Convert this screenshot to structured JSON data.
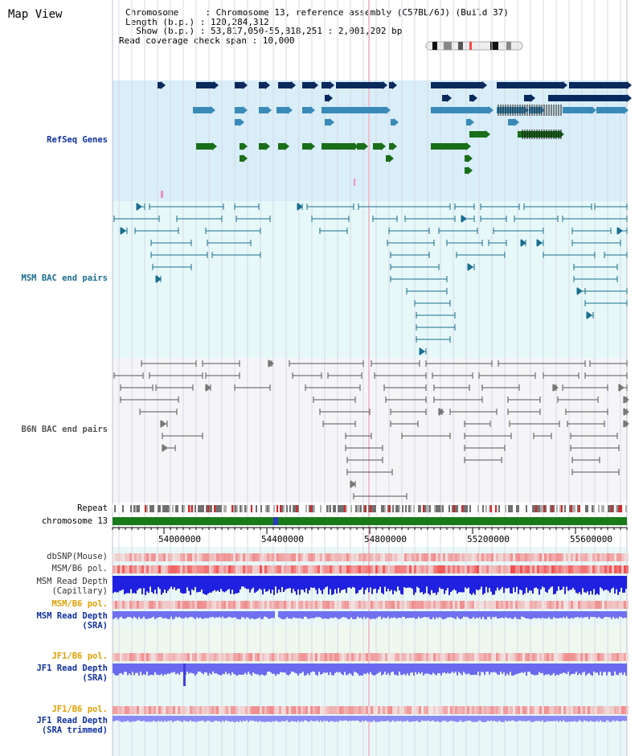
{
  "title": "Map View",
  "info": {
    "chromosome": "Chromosome     : Chromosome 13, reference assembly (C57BL/6J) (Build 37)",
    "length": "Length (b.p.) : 120,284,312",
    "show": "  Show (b.p.) : 53,817,050-55,818,251 : 2,001,202 bp",
    "coverage": "Read coverage check span : 10,000"
  },
  "tracks": {
    "refseq": "RefSeq Genes",
    "msm_bac": "MSM BAC end pairs",
    "b6n_bac": "B6N BAC end pairs",
    "repeat": "Repeat",
    "chromosome": "chromosome 13",
    "dbsnp": "dbSNP(Mouse)",
    "msm_pol": "MSM/B6 pol.",
    "msm_depth_cap": "MSM Read Depth\n(Capillary)",
    "msm_pol2": "MSM/B6 pol.",
    "msm_depth_sra": "MSM Read Depth\n(SRA)",
    "jf1_pol": "JF1/B6 pol.",
    "jf1_depth": "JF1 Read Depth\n(SRA)",
    "jf1_pol2": "JF1/B6 pol.",
    "jf1_depth_trim": "JF1 Read Depth\n(SRA trimmed)"
  },
  "axis": {
    "ticks": [
      "54000000",
      "54400000",
      "54800000",
      "55200000",
      "55600000"
    ]
  },
  "colors": {
    "refseq_dark": "#0a2a5e",
    "refseq_light": "#3a8ab8",
    "refseq_green": "#1a6e1a",
    "msm_line": "#1a6e8e",
    "b6n_line": "#555555",
    "depth_blue": "#2020e0",
    "depth_light": "#7070f0",
    "pol_red": "#f04040"
  }
}
